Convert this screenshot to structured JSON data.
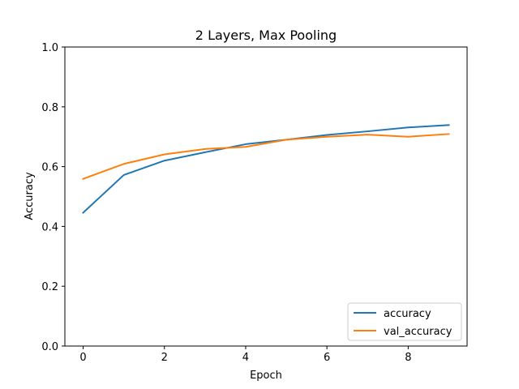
{
  "chart_data": {
    "type": "line",
    "title": "2 Layers, Max Pooling",
    "xlabel": "Epoch",
    "ylabel": "Accuracy",
    "xlim": [
      -0.45,
      9.45
    ],
    "ylim": [
      0.0,
      1.0
    ],
    "xticks": [
      0,
      2,
      4,
      6,
      8
    ],
    "xtick_labels": [
      "0",
      "2",
      "4",
      "6",
      "8"
    ],
    "yticks": [
      0.0,
      0.2,
      0.4,
      0.6,
      0.8,
      1.0
    ],
    "ytick_labels": [
      "0.0",
      "0.2",
      "0.4",
      "0.6",
      "0.8",
      "1.0"
    ],
    "grid": false,
    "legend_position": "lower-right",
    "x": [
      0,
      1,
      2,
      3,
      4,
      5,
      6,
      7,
      8,
      9
    ],
    "series": [
      {
        "name": "accuracy",
        "color": "#1f77b4",
        "values": [
          0.446,
          0.572,
          0.62,
          0.648,
          0.675,
          0.69,
          0.706,
          0.718,
          0.731,
          0.739
        ]
      },
      {
        "name": "val_accuracy",
        "color": "#ff7f0e",
        "values": [
          0.559,
          0.609,
          0.641,
          0.659,
          0.666,
          0.69,
          0.7,
          0.707,
          0.7,
          0.709
        ]
      }
    ]
  }
}
